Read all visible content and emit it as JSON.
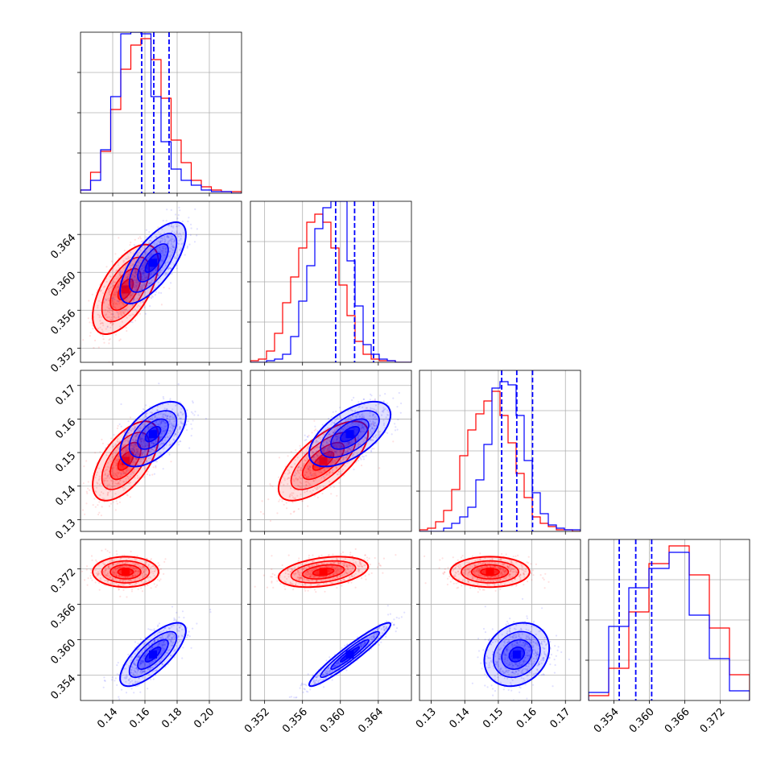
{
  "chart_data": {
    "type": "corner",
    "colors": {
      "red": "#ff0000",
      "blue": "#0000ff"
    },
    "grid": true,
    "parameters": [
      {
        "lim": [
          0.12,
          0.22
        ],
        "ticks": [
          "0.14",
          "0.16",
          "0.18",
          "0.20"
        ],
        "tick_values": [
          0.14,
          0.16,
          0.18,
          0.2
        ]
      },
      {
        "lim": [
          0.3505,
          0.3675
        ],
        "ticks": [
          "0.352",
          "0.356",
          "0.360",
          "0.364"
        ],
        "tick_values": [
          0.352,
          0.356,
          0.36,
          0.364
        ]
      },
      {
        "lim": [
          0.1265,
          0.1745
        ],
        "ticks": [
          "0.13",
          "0.14",
          "0.15",
          "0.16",
          "0.17"
        ],
        "tick_values": [
          0.13,
          0.14,
          0.15,
          0.16,
          0.17
        ]
      },
      {
        "lim": [
          0.3497,
          0.377
        ],
        "ticks": [
          "0.354",
          "0.360",
          "0.366",
          "0.372"
        ],
        "tick_values": [
          0.354,
          0.36,
          0.366,
          0.372
        ]
      }
    ],
    "series": [
      {
        "color": "red",
        "mean": [
          0.148,
          0.3582,
          0.1475,
          0.3715
        ],
        "sd": [
          0.0095,
          0.0022,
          0.0055,
          0.0012
        ],
        "corr": [
          [
            1,
            0.6,
            0.6,
            0
          ],
          [
            0.6,
            1,
            0.7,
            0.35
          ],
          [
            0.6,
            0.7,
            1,
            0
          ],
          [
            0,
            0.35,
            0,
            1
          ]
        ],
        "hist": [
          [
            0.02,
            0.13,
            0.26,
            0.52,
            0.77,
            0.92,
            0.96,
            0.83,
            0.59,
            0.33,
            0.19,
            0.08,
            0.04,
            0.02,
            0.01,
            0.01
          ],
          [
            0.01,
            0.02,
            0.07,
            0.18,
            0.37,
            0.53,
            0.71,
            0.87,
            0.92,
            0.87,
            0.71,
            0.48,
            0.29,
            0.13,
            0.05,
            0.02,
            0.01,
            0.01,
            0,
            0
          ],
          [
            0.01,
            0.02,
            0.06,
            0.13,
            0.26,
            0.47,
            0.63,
            0.73,
            0.81,
            0.87,
            0.72,
            0.55,
            0.36,
            0.21,
            0.09,
            0.05,
            0.03,
            0.01,
            0.01,
            0
          ],
          [
            0.03,
            0.2,
            0.55,
            0.85,
            0.96,
            0.78,
            0.45,
            0.16
          ]
        ]
      },
      {
        "color": "blue",
        "mean": [
          0.165,
          0.361,
          0.1555,
          0.3575
        ],
        "sd": [
          0.0095,
          0.002,
          0.0045,
          0.0025
        ],
        "corr": [
          [
            1,
            0.7,
            0.55,
            0.75
          ],
          [
            0.7,
            1,
            0.6,
            0.95
          ],
          [
            0.55,
            0.6,
            1,
            0.2
          ],
          [
            0.75,
            0.95,
            0.2,
            1
          ]
        ],
        "hist": [
          [
            0.02,
            0.08,
            0.27,
            0.6,
            0.99,
            1.0,
            0.99,
            0.6,
            0.32,
            0.15,
            0.08,
            0.05,
            0.02,
            0.01,
            0.01,
            0.0
          ],
          [
            0,
            0,
            0.01,
            0.02,
            0.05,
            0.16,
            0.38,
            0.6,
            0.83,
            0.96,
            1.0,
            1.0,
            0.63,
            0.35,
            0.11,
            0.05,
            0.02,
            0.01,
            0,
            0
          ],
          [
            0,
            0,
            0,
            0.02,
            0.05,
            0.09,
            0.15,
            0.32,
            0.54,
            0.89,
            0.93,
            0.91,
            0.72,
            0.44,
            0.24,
            0.11,
            0.04,
            0.02,
            0.01,
            0.01
          ],
          [
            0.05,
            0.46,
            0.7,
            0.82,
            0.92,
            0.53,
            0.26,
            0.06
          ]
        ],
        "quantiles": [
          [
            0.158,
            0.1655,
            0.175
          ],
          [
            0.3595,
            0.3615,
            0.3635
          ],
          [
            0.151,
            0.1555,
            0.1602
          ],
          [
            0.3549,
            0.3577,
            0.3604
          ]
        ]
      }
    ]
  }
}
